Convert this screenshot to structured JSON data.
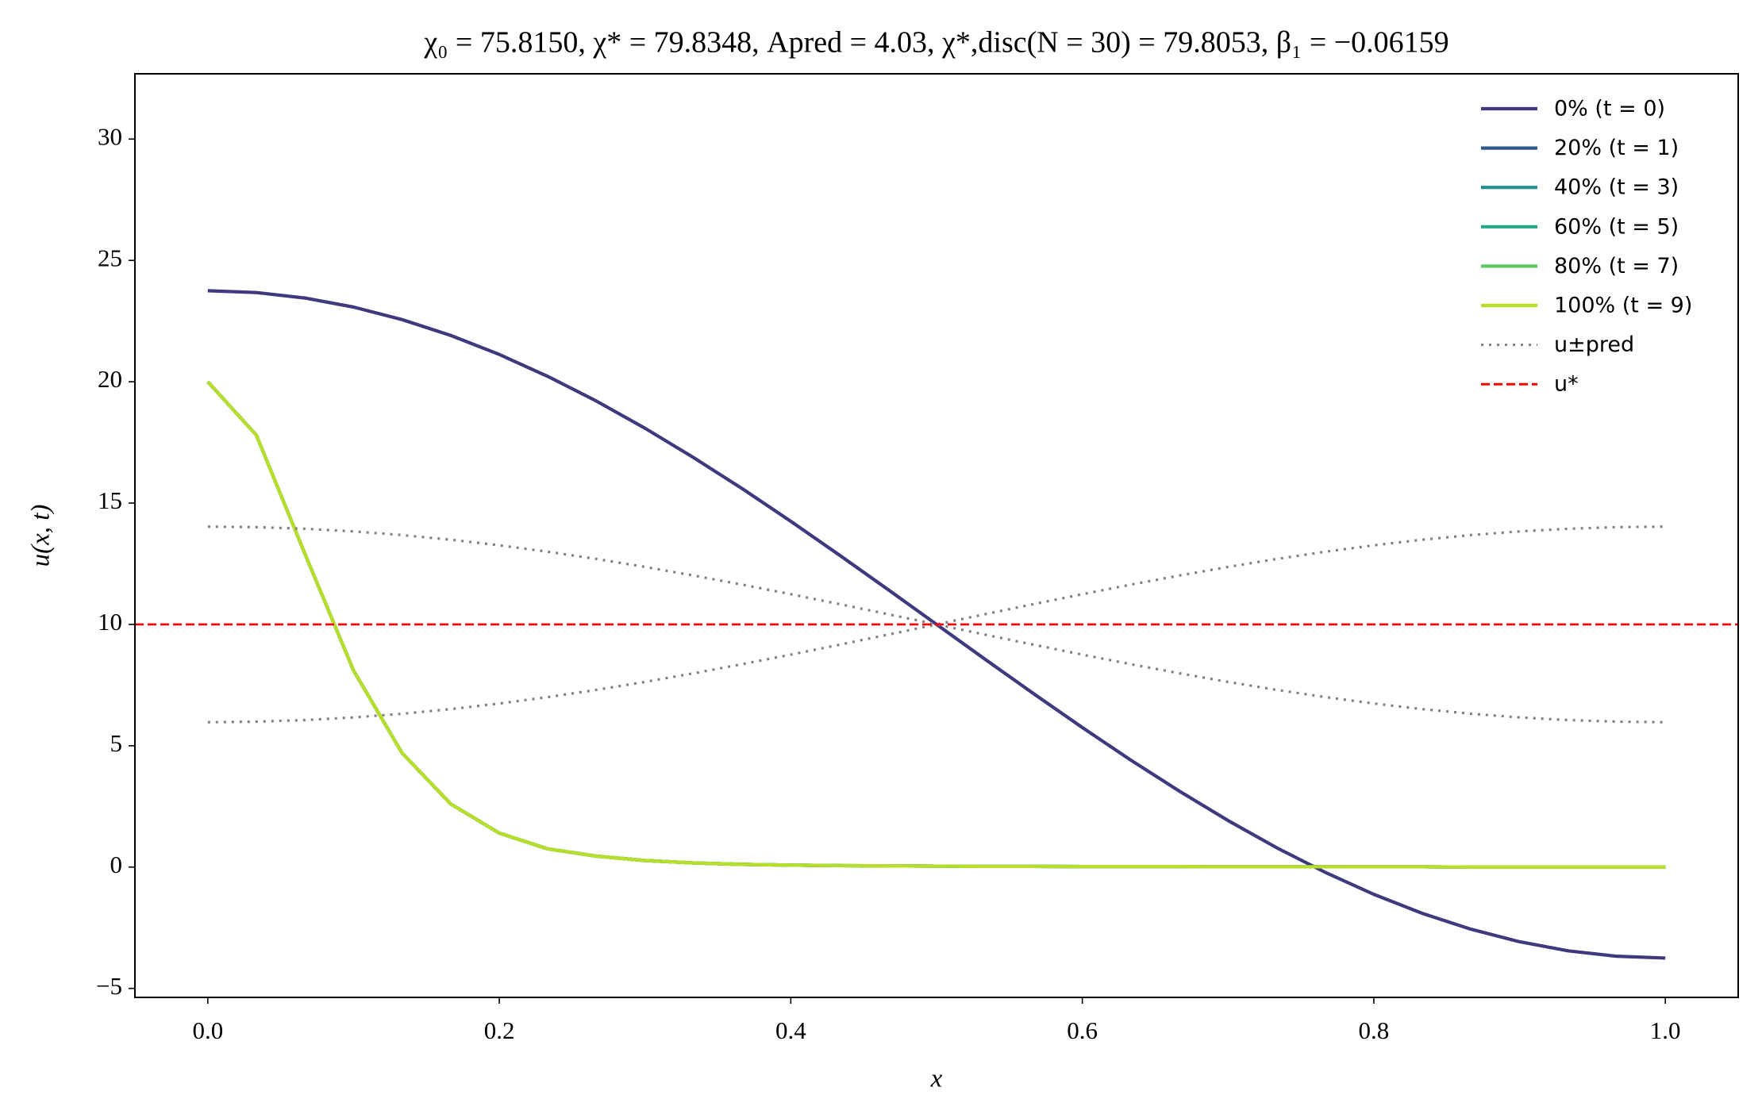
{
  "chart_data": {
    "type": "line",
    "title": "χ₀ = 75.8150,  χ* = 79.8348,  Apred = 4.03,  χ*,disc(N = 30) = 79.8053,  β₁ = −0.06159",
    "x_label": "x",
    "y_label": "u(x, t)",
    "x": [
      0,
      0.0333,
      0.0667,
      0.1,
      0.1333,
      0.1667,
      0.2,
      0.2333,
      0.2667,
      0.3,
      0.3333,
      0.3667,
      0.4,
      0.4333,
      0.4667,
      0.5,
      0.5333,
      0.5667,
      0.6,
      0.6333,
      0.6667,
      0.7,
      0.7333,
      0.7667,
      0.8,
      0.8333,
      0.8667,
      0.9,
      0.9333,
      0.9667,
      1
    ],
    "series": [
      {
        "name": "0% (t = 0)",
        "color": "#3f3a7e",
        "style": "solid",
        "values": [
          23.75,
          23.675,
          23.45,
          23.077,
          22.561,
          21.908,
          21.124,
          20.218,
          19.201,
          18.082,
          16.875,
          15.593,
          14.249,
          12.859,
          11.437,
          10,
          8.563,
          7.141,
          5.751,
          4.407,
          3.125,
          1.918,
          0.799,
          -0.218,
          -1.124,
          -1.908,
          -2.561,
          -3.077,
          -3.45,
          -3.675,
          -3.75
        ]
      },
      {
        "name": "20% (t = 1)",
        "color": "#31598c",
        "style": "solid",
        "values": [
          20,
          17.8,
          12.9,
          8.1,
          4.7,
          2.6,
          1.4,
          0.75,
          0.45,
          0.27,
          0.17,
          0.11,
          0.08,
          0.06,
          0.05,
          0.04,
          0.03,
          0.03,
          0.02,
          0.02,
          0.02,
          0.01,
          0.01,
          0.01,
          0.01,
          0.01,
          0,
          0,
          0,
          0,
          0
        ]
      },
      {
        "name": "40% (t = 3)",
        "color": "#21908d",
        "style": "solid",
        "values": [
          20,
          17.8,
          12.9,
          8.1,
          4.7,
          2.6,
          1.4,
          0.75,
          0.45,
          0.27,
          0.17,
          0.11,
          0.08,
          0.06,
          0.05,
          0.04,
          0.03,
          0.03,
          0.02,
          0.02,
          0.02,
          0.01,
          0.01,
          0.01,
          0.01,
          0.01,
          0,
          0,
          0,
          0,
          0
        ]
      },
      {
        "name": "60% (t = 5)",
        "color": "#22a884",
        "style": "solid",
        "values": [
          20,
          17.8,
          12.9,
          8.1,
          4.7,
          2.6,
          1.4,
          0.75,
          0.45,
          0.27,
          0.17,
          0.11,
          0.08,
          0.06,
          0.05,
          0.04,
          0.03,
          0.03,
          0.02,
          0.02,
          0.02,
          0.01,
          0.01,
          0.01,
          0.01,
          0.01,
          0,
          0,
          0,
          0,
          0
        ]
      },
      {
        "name": "80% (t = 7)",
        "color": "#5ec962",
        "style": "solid",
        "values": [
          20,
          17.8,
          12.9,
          8.1,
          4.7,
          2.6,
          1.4,
          0.75,
          0.45,
          0.27,
          0.17,
          0.11,
          0.08,
          0.06,
          0.05,
          0.04,
          0.03,
          0.03,
          0.02,
          0.02,
          0.02,
          0.01,
          0.01,
          0.01,
          0.01,
          0.01,
          0,
          0,
          0,
          0,
          0
        ]
      },
      {
        "name": "100% (t = 9)",
        "color": "#b8de29",
        "style": "solid",
        "values": [
          20,
          17.8,
          12.9,
          8.1,
          4.7,
          2.6,
          1.4,
          0.75,
          0.45,
          0.27,
          0.17,
          0.11,
          0.08,
          0.06,
          0.05,
          0.04,
          0.03,
          0.03,
          0.02,
          0.02,
          0.02,
          0.01,
          0.01,
          0.01,
          0.01,
          0.01,
          0,
          0,
          0,
          0,
          0
        ]
      },
      {
        "name": "u±pred",
        "color": "#808080",
        "style": "dotted",
        "values": [
          14.03,
          14.008,
          13.942,
          13.833,
          13.682,
          13.49,
          13.26,
          12.995,
          12.697,
          12.369,
          12.015,
          11.639,
          11.245,
          10.838,
          10.421,
          10,
          9.579,
          9.162,
          8.755,
          8.361,
          7.985,
          7.631,
          7.303,
          7.005,
          6.74,
          6.51,
          6.318,
          6.167,
          6.058,
          5.992,
          5.97
        ]
      },
      {
        "color": "#808080",
        "style": "dotted",
        "values": [
          5.97,
          5.992,
          6.058,
          6.167,
          6.318,
          6.51,
          6.74,
          7.005,
          7.303,
          7.631,
          7.985,
          8.361,
          8.755,
          9.162,
          9.579,
          10,
          10.421,
          10.838,
          11.245,
          11.639,
          12.015,
          12.369,
          12.697,
          12.995,
          13.26,
          13.49,
          13.682,
          13.833,
          13.942,
          14.008,
          14.03
        ]
      }
    ],
    "hline": {
      "name": "u*",
      "value": 10,
      "color": "#ff0000",
      "style": "dashed"
    },
    "xlim": [
      -0.05,
      1.05
    ],
    "ylim": [
      -5.37,
      32.69
    ],
    "xticks": [
      {
        "value": 0,
        "label": "0.0"
      },
      0.2,
      0.4,
      0.6,
      0.8,
      {
        "value": 1,
        "label": "1.0"
      }
    ],
    "yticks": [
      {
        "value": -5,
        "label": "−5"
      },
      0,
      5,
      10,
      15,
      20,
      25,
      30
    ],
    "legend": "upper right"
  }
}
